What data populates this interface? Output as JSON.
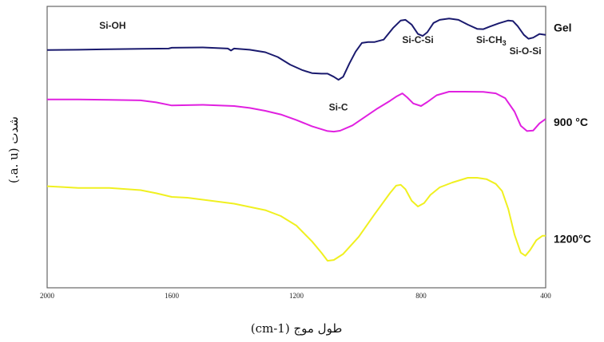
{
  "chart_data": {
    "type": "line",
    "title": "",
    "xlabel": "طول موج (cm-1)",
    "ylabel": "شدت (a. u.)",
    "x_reversed": true,
    "xlim": [
      2000,
      400
    ],
    "ylim": [
      0,
      100
    ],
    "xticks": [
      "2000",
      "1600",
      "1200",
      "800",
      "400"
    ],
    "grid": false,
    "y_units": "a. u.",
    "annotations": [
      {
        "text": "Si-OH",
        "x": 1790,
        "y": 92
      },
      {
        "text": "Si-C-Si",
        "x": 810,
        "y": 87
      },
      {
        "text": "Si-CH3",
        "x": 575,
        "y": 87
      },
      {
        "text": "Si-O-Si",
        "x": 465,
        "y": 83
      },
      {
        "text": "Si-C",
        "x": 1065,
        "y": 63
      }
    ],
    "series": [
      {
        "name": "Gel",
        "color": "#1a1a6e",
        "points": [
          [
            2000,
            84.5
          ],
          [
            1900,
            84.6
          ],
          [
            1800,
            84.8
          ],
          [
            1700,
            84.9
          ],
          [
            1610,
            85.0
          ],
          [
            1600,
            85.3
          ],
          [
            1500,
            85.4
          ],
          [
            1420,
            85.0
          ],
          [
            1410,
            84.3
          ],
          [
            1400,
            85.0
          ],
          [
            1350,
            84.6
          ],
          [
            1300,
            83.7
          ],
          [
            1260,
            82.0
          ],
          [
            1220,
            79.3
          ],
          [
            1180,
            77.3
          ],
          [
            1150,
            76.3
          ],
          [
            1120,
            76.1
          ],
          [
            1100,
            76.1
          ],
          [
            1080,
            75.0
          ],
          [
            1065,
            73.9
          ],
          [
            1050,
            75.0
          ],
          [
            1030,
            79.7
          ],
          [
            1010,
            83.9
          ],
          [
            990,
            87.0
          ],
          [
            970,
            87.3
          ],
          [
            950,
            87.3
          ],
          [
            920,
            88.2
          ],
          [
            890,
            92.3
          ],
          [
            865,
            95.0
          ],
          [
            850,
            95.2
          ],
          [
            830,
            93.5
          ],
          [
            810,
            90.2
          ],
          [
            795,
            89.5
          ],
          [
            780,
            90.8
          ],
          [
            760,
            94.1
          ],
          [
            740,
            95.2
          ],
          [
            710,
            95.7
          ],
          [
            680,
            95.2
          ],
          [
            650,
            93.5
          ],
          [
            620,
            92.0
          ],
          [
            600,
            91.9
          ],
          [
            580,
            92.8
          ],
          [
            550,
            94.0
          ],
          [
            520,
            95.0
          ],
          [
            505,
            94.8
          ],
          [
            490,
            93.0
          ],
          [
            470,
            89.9
          ],
          [
            455,
            88.5
          ],
          [
            440,
            88.9
          ],
          [
            420,
            90.2
          ],
          [
            400,
            89.9
          ]
        ]
      },
      {
        "name": "900 °C",
        "color": "#e020e0",
        "points": [
          [
            2000,
            66.9
          ],
          [
            1900,
            66.9
          ],
          [
            1800,
            66.8
          ],
          [
            1700,
            66.6
          ],
          [
            1650,
            65.9
          ],
          [
            1600,
            64.8
          ],
          [
            1550,
            64.9
          ],
          [
            1500,
            65.0
          ],
          [
            1450,
            64.8
          ],
          [
            1400,
            64.6
          ],
          [
            1350,
            63.9
          ],
          [
            1300,
            62.9
          ],
          [
            1250,
            61.6
          ],
          [
            1200,
            59.6
          ],
          [
            1150,
            57.4
          ],
          [
            1100,
            55.7
          ],
          [
            1080,
            55.5
          ],
          [
            1060,
            55.8
          ],
          [
            1020,
            57.7
          ],
          [
            980,
            60.7
          ],
          [
            940,
            63.7
          ],
          [
            900,
            66.4
          ],
          [
            880,
            67.9
          ],
          [
            860,
            69.1
          ],
          [
            845,
            67.7
          ],
          [
            825,
            65.5
          ],
          [
            800,
            64.6
          ],
          [
            780,
            66.0
          ],
          [
            750,
            68.4
          ],
          [
            710,
            69.7
          ],
          [
            660,
            69.7
          ],
          [
            600,
            69.6
          ],
          [
            560,
            69.1
          ],
          [
            530,
            67.4
          ],
          [
            500,
            62.6
          ],
          [
            480,
            57.6
          ],
          [
            460,
            55.7
          ],
          [
            440,
            55.9
          ],
          [
            420,
            58.4
          ],
          [
            400,
            60.0
          ]
        ]
      },
      {
        "name": "1200°C",
        "color": "#f0f020",
        "points": [
          [
            2000,
            36.1
          ],
          [
            1950,
            35.8
          ],
          [
            1900,
            35.5
          ],
          [
            1800,
            35.5
          ],
          [
            1700,
            34.7
          ],
          [
            1650,
            33.6
          ],
          [
            1600,
            32.3
          ],
          [
            1550,
            32.0
          ],
          [
            1500,
            31.3
          ],
          [
            1400,
            29.9
          ],
          [
            1300,
            27.6
          ],
          [
            1250,
            25.5
          ],
          [
            1200,
            22.1
          ],
          [
            1150,
            16.5
          ],
          [
            1120,
            12.5
          ],
          [
            1100,
            9.6
          ],
          [
            1080,
            9.9
          ],
          [
            1050,
            12.0
          ],
          [
            1000,
            18.1
          ],
          [
            950,
            26.0
          ],
          [
            900,
            33.6
          ],
          [
            880,
            36.3
          ],
          [
            865,
            36.6
          ],
          [
            850,
            35.0
          ],
          [
            830,
            30.9
          ],
          [
            810,
            28.9
          ],
          [
            790,
            30.1
          ],
          [
            770,
            33.0
          ],
          [
            740,
            35.7
          ],
          [
            700,
            37.4
          ],
          [
            650,
            39.1
          ],
          [
            620,
            39.1
          ],
          [
            590,
            38.6
          ],
          [
            560,
            36.9
          ],
          [
            540,
            34.4
          ],
          [
            520,
            28.0
          ],
          [
            500,
            18.9
          ],
          [
            480,
            12.5
          ],
          [
            465,
            11.4
          ],
          [
            450,
            13.4
          ],
          [
            430,
            16.9
          ],
          [
            410,
            18.5
          ],
          [
            400,
            18.5
          ]
        ]
      }
    ]
  }
}
